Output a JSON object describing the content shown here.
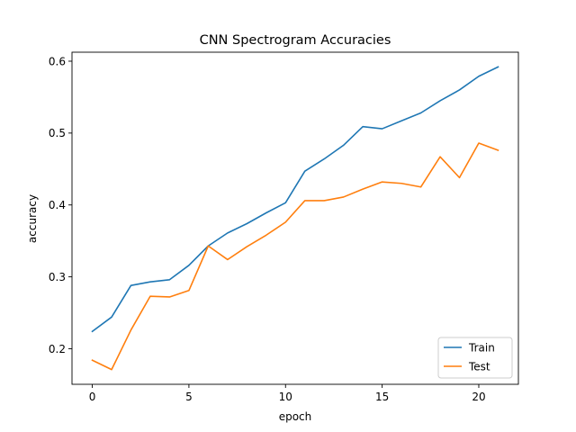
{
  "chart_data": {
    "type": "line",
    "title": "CNN Spectrogram Accuracies",
    "xlabel": "epoch",
    "ylabel": "accuracy",
    "xlim": [
      -1.05,
      22.05
    ],
    "ylim": [
      0.1505,
      0.6125
    ],
    "xticks": [
      0,
      5,
      10,
      15,
      20
    ],
    "xtick_labels": [
      "0",
      "5",
      "10",
      "15",
      "20"
    ],
    "yticks": [
      0.2,
      0.3,
      0.4,
      0.5,
      0.6
    ],
    "ytick_labels": [
      "0.2",
      "0.3",
      "0.4",
      "0.5",
      "0.6"
    ],
    "grid": false,
    "legend_position": "lower-right",
    "x": [
      0,
      1,
      2,
      3,
      4,
      5,
      6,
      7,
      8,
      9,
      10,
      11,
      12,
      13,
      14,
      15,
      16,
      17,
      18,
      19,
      20,
      21
    ],
    "series": [
      {
        "name": "Train",
        "color": "#1f77b4",
        "values": [
          0.224,
          0.244,
          0.288,
          0.293,
          0.296,
          0.316,
          0.343,
          0.361,
          0.374,
          0.389,
          0.403,
          0.447,
          0.464,
          0.483,
          0.509,
          0.506,
          0.517,
          0.528,
          0.545,
          0.56,
          0.579,
          0.592
        ]
      },
      {
        "name": "Test",
        "color": "#ff7f0e",
        "values": [
          0.184,
          0.171,
          0.226,
          0.273,
          0.272,
          0.281,
          0.343,
          0.324,
          0.342,
          0.358,
          0.376,
          0.406,
          0.406,
          0.411,
          0.422,
          0.432,
          0.43,
          0.425,
          0.467,
          0.438,
          0.486,
          0.476
        ]
      }
    ]
  }
}
